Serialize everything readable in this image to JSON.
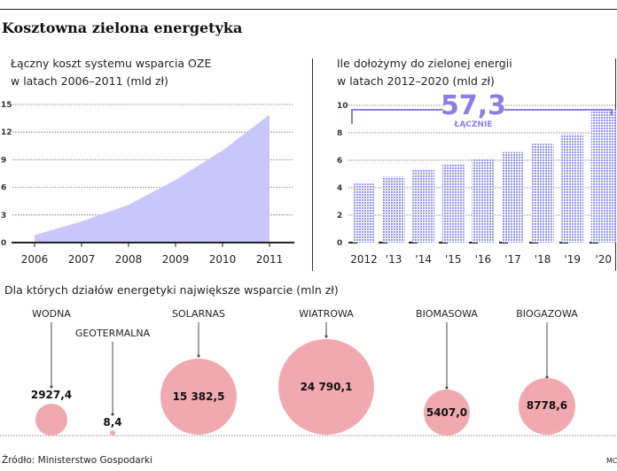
{
  "title": "Kosztowna zielona energetyka",
  "colors": {
    "area": "#c8c6fb",
    "bars": "#8f92ee",
    "total": "#8a7fe0",
    "bubbles": "#f1a9b0"
  },
  "chart_data": [
    {
      "type": "area",
      "title_line1": "Łączny koszt systemu wsparcia OZE",
      "title_line2": "w latach 2006–2011 (mld zł)",
      "x": [
        "2006",
        "2007",
        "2008",
        "2009",
        "2010",
        "2011"
      ],
      "values": [
        0.8,
        2.3,
        4.1,
        6.8,
        10.0,
        13.9
      ],
      "yticks": [
        "0",
        "3",
        "6",
        "9",
        "12",
        "15"
      ],
      "ylim": [
        0,
        15
      ],
      "grid": true
    },
    {
      "type": "bar",
      "title_line1": "Ile dołożymy do zielonej energii",
      "title_line2": "w latach 2012–2020 (mld zł)",
      "categories": [
        "2012",
        "'13",
        "'14",
        "'15",
        "'16",
        "'17",
        "'18",
        "'19",
        "'20"
      ],
      "values": [
        4.3,
        4.8,
        5.3,
        5.7,
        6.1,
        6.6,
        7.2,
        7.9,
        9.7
      ],
      "yticks": [
        "0",
        "2",
        "4",
        "6",
        "8",
        "10"
      ],
      "ylim": [
        0,
        10
      ],
      "grid": true,
      "total_value": "57,3",
      "total_label": "ŁĄCZNIE"
    },
    {
      "type": "bubble",
      "title": "Dla których działów energetyki największe wsparcie (mln zł)",
      "categories": [
        "WODNA",
        "GEOTERMALNA",
        "SOLARNAS",
        "WIATROWA",
        "BIOMASOWA",
        "BIOGAZOWA"
      ],
      "values": [
        2927.4,
        8.4,
        15382.5,
        24790.1,
        5407.0,
        8778.6
      ],
      "value_labels": [
        "2927,4",
        "8,4",
        "15 382,5",
        "24 790,1",
        "5407,0",
        "8778,6"
      ]
    }
  ],
  "footer": {
    "source": "Źródło: Ministerstwo Gospodarki",
    "credit": "MC"
  }
}
